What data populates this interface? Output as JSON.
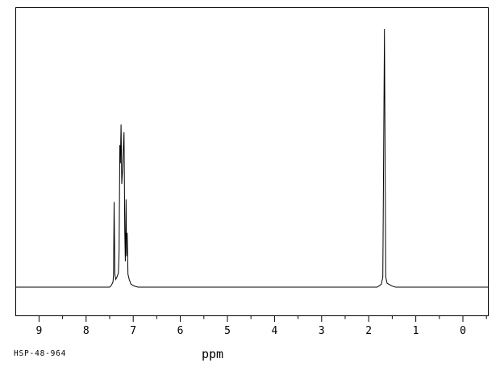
{
  "figure": {
    "kind": "1H NMR spectrum",
    "background_color": "#ffffff",
    "line_color": "#000000"
  },
  "footer": {
    "sample_id": "HSP-48-964"
  },
  "chart_data": {
    "type": "line",
    "title": "",
    "xlabel": "ppm",
    "ylabel": "",
    "xlim": [
      9.5,
      -0.5
    ],
    "ylim": [
      0,
      1.05
    ],
    "grid": false,
    "x_ticks": [
      9,
      8,
      7,
      6,
      5,
      4,
      3,
      2,
      1,
      0
    ],
    "x_minor_ticks": [
      8.5,
      7.5,
      6.5,
      5.5,
      4.5,
      3.5,
      2.5,
      1.5,
      0.5,
      -0.5
    ],
    "peaks": [
      {
        "ppm": 7.4,
        "rel_intensity": 0.33
      },
      {
        "ppm": 7.29,
        "rel_intensity": 0.55
      },
      {
        "ppm": 7.26,
        "rel_intensity": 0.63
      },
      {
        "ppm": 7.2,
        "rel_intensity": 0.6
      },
      {
        "ppm": 7.15,
        "rel_intensity": 0.34
      },
      {
        "ppm": 7.13,
        "rel_intensity": 0.21
      },
      {
        "ppm": 1.67,
        "rel_intensity": 1.0
      }
    ],
    "multiplet_regions": [
      {
        "range_ppm": [
          7.45,
          7.05
        ],
        "shape": "aromatic multiplet"
      },
      {
        "range_ppm": [
          1.72,
          1.6
        ],
        "shape": "singlet"
      }
    ],
    "trace": [
      [
        9.5,
        0
      ],
      [
        7.5,
        0
      ],
      [
        7.46,
        0.008
      ],
      [
        7.43,
        0.02
      ],
      [
        7.418,
        0.05
      ],
      [
        7.405,
        0.33
      ],
      [
        7.39,
        0.05
      ],
      [
        7.37,
        0.03
      ],
      [
        7.345,
        0.04
      ],
      [
        7.315,
        0.055
      ],
      [
        7.3,
        0.14
      ],
      [
        7.285,
        0.55
      ],
      [
        7.272,
        0.48
      ],
      [
        7.258,
        0.63
      ],
      [
        7.243,
        0.4
      ],
      [
        7.228,
        0.45
      ],
      [
        7.195,
        0.6
      ],
      [
        7.18,
        0.22
      ],
      [
        7.168,
        0.1
      ],
      [
        7.152,
        0.34
      ],
      [
        7.14,
        0.12
      ],
      [
        7.128,
        0.21
      ],
      [
        7.112,
        0.05
      ],
      [
        7.085,
        0.03
      ],
      [
        7.05,
        0.012
      ],
      [
        6.99,
        0.005
      ],
      [
        6.9,
        0
      ],
      [
        1.82,
        0
      ],
      [
        1.77,
        0.006
      ],
      [
        1.73,
        0.012
      ],
      [
        1.7,
        0.04
      ],
      [
        1.666,
        1.0
      ],
      [
        1.638,
        0.04
      ],
      [
        1.61,
        0.015
      ],
      [
        1.56,
        0.01
      ],
      [
        1.5,
        0.004
      ],
      [
        1.43,
        0
      ],
      [
        -0.55,
        0
      ]
    ]
  }
}
